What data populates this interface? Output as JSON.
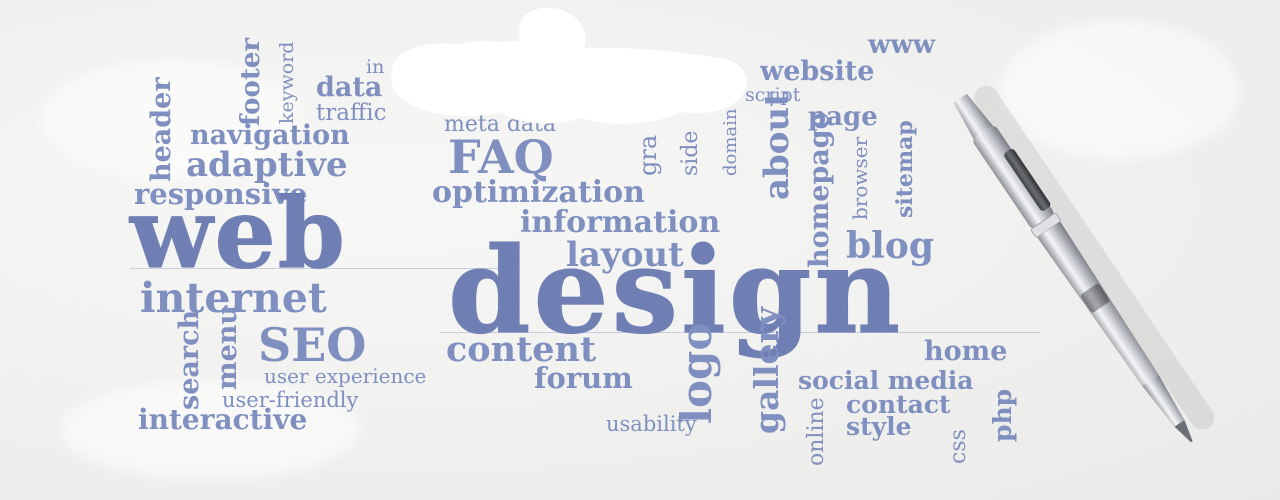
{
  "scene": "word cloud on paper with a pen",
  "colors": {
    "ink": "#7f8fbf",
    "paper": "#f2f2f0",
    "pen_silver": "#c9ccd2",
    "pen_dark": "#55585e"
  },
  "words": {
    "www": "www",
    "website": "website",
    "script": "script",
    "page": "page",
    "footer": "footer",
    "keyword": "keyword",
    "in": "in",
    "data": "data",
    "traffic": "traffic",
    "header": "header",
    "navigation": "navigation",
    "meta_data": "meta data",
    "adaptive": "adaptive",
    "faq": "FAQ",
    "graphics": "gra",
    "sidebar": "side",
    "domain": "domain",
    "about": "about",
    "browser": "browser",
    "sitemap": "sitemap",
    "responsive": "responsive",
    "optimization": "optimization",
    "homepage": "homepage",
    "web": "web",
    "information": "information",
    "blog": "blog",
    "layout": "layout",
    "internet": "internet",
    "design": "design",
    "search": "search",
    "menu": "menu",
    "seo": "SEO",
    "content": "content",
    "logo": "logo",
    "gallery": "gallery",
    "home": "home",
    "user_experience": "user experience",
    "forum": "forum",
    "social_media": "social media",
    "user_friendly": "user-friendly",
    "online": "online",
    "contact": "contact",
    "php": "php",
    "interactive": "interactive",
    "usability": "usability",
    "style": "style",
    "css": "css"
  }
}
